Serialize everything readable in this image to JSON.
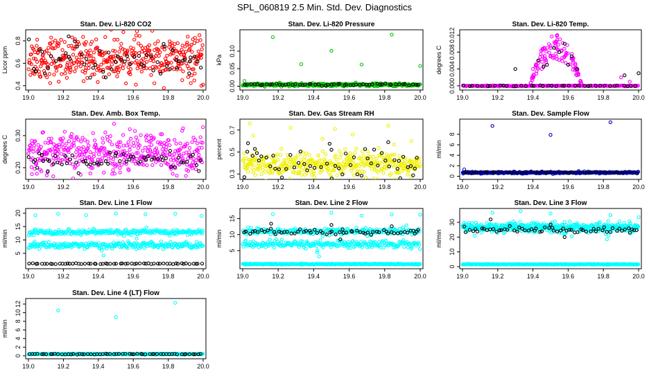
{
  "figure_title": "SPL_060819  2.5 Min. Std. Dev. Diagnostics",
  "chart_data": [
    {
      "type": "scatter",
      "title": "Stan. Dev. Li-820 CO2",
      "ylabel": "Licor ppm",
      "xlim": [
        19.0,
        20.0
      ],
      "ylim": [
        0.38,
        0.88
      ],
      "xticks": [
        "19.0",
        "19.2",
        "19.4",
        "19.6",
        "19.8",
        "20.0"
      ],
      "yticks": [
        {
          "v": 0.4,
          "label": "0.4"
        },
        {
          "v": 0.6,
          "label": "0.6"
        },
        {
          "v": 0.8,
          "label": "0.8"
        }
      ],
      "series": [
        {
          "name": "band",
          "color": "#ff0000",
          "bands": [
            {
              "center": 0.64,
              "spread": 0.09,
              "n": 420
            }
          ],
          "points": [
            [
              19.05,
              0.81
            ],
            [
              19.13,
              0.83
            ],
            [
              19.33,
              0.79
            ],
            [
              19.51,
              0.81
            ],
            [
              19.82,
              0.78
            ],
            [
              19.88,
              0.45
            ],
            [
              19.22,
              0.47
            ],
            [
              19.99,
              0.4
            ],
            [
              19.07,
              0.48
            ],
            [
              19.95,
              0.78
            ]
          ]
        },
        {
          "name": "black",
          "color": "#000000",
          "bands": [
            {
              "center": 0.62,
              "spread": 0.08,
              "n": 55
            }
          ],
          "points": [
            [
              19.23,
              0.84
            ],
            [
              19.78,
              0.75
            ],
            [
              19.92,
              0.51
            ],
            [
              19.85,
              0.56
            ]
          ]
        }
      ]
    },
    {
      "type": "scatter",
      "title": "Stan. Dev. Li-820 Pressure",
      "ylabel": "kPa",
      "xlim": [
        19.0,
        20.0
      ],
      "ylim": [
        -0.005,
        0.155
      ],
      "xticks": [
        "19.0",
        "19.2",
        "19.4",
        "19.6",
        "19.8",
        "20.0"
      ],
      "yticks": [
        {
          "v": 0.0,
          "label": "0.00"
        },
        {
          "v": 0.05,
          "label": "0.05"
        },
        {
          "v": 0.1,
          "label": "0.10"
        }
      ],
      "series": [
        {
          "name": "green",
          "color": "#00c000",
          "bands": [
            {
              "center": 0.004,
              "spread": 0.002,
              "n": 380
            }
          ],
          "points": [
            [
              19.17,
              0.14
            ],
            [
              19.33,
              0.063
            ],
            [
              19.5,
              0.101
            ],
            [
              19.67,
              0.062
            ],
            [
              19.84,
              0.147
            ],
            [
              20.0,
              0.058
            ],
            [
              19.01,
              0.015
            ]
          ]
        },
        {
          "name": "black",
          "color": "#000000",
          "bands": [
            {
              "center": 0.005,
              "spread": 0.0015,
              "n": 55
            }
          ],
          "points": []
        }
      ]
    },
    {
      "type": "scatter",
      "title": "Stan. Dev. Li-820 Temp.",
      "ylabel": "degrees C",
      "xlim": [
        19.0,
        20.0
      ],
      "ylim": [
        -0.0005,
        0.0128
      ],
      "xticks": [
        "19.0",
        "19.2",
        "19.4",
        "19.6",
        "19.8",
        "20.0"
      ],
      "yticks": [
        {
          "v": 0.0,
          "label": "0.000"
        },
        {
          "v": 0.004,
          "label": "0.004"
        },
        {
          "v": 0.008,
          "label": "0.008"
        },
        {
          "v": 0.012,
          "label": "0.012"
        }
      ],
      "series": [
        {
          "name": "magenta",
          "color": "#ff00ff",
          "bands": [
            {
              "center": 0.0,
              "spread": 5e-05,
              "n": 230
            }
          ],
          "hump": {
            "x0": 19.38,
            "x1": 19.68,
            "peak": 0.011,
            "n": 120
          },
          "points": [
            [
              19.9,
              0.002
            ],
            [
              19.95,
              0.001
            ],
            [
              19.4,
              0.004
            ],
            [
              19.45,
              0.004
            ]
          ]
        },
        {
          "name": "black",
          "color": "#000000",
          "bands": [
            {
              "center": 0.0,
              "spread": 5e-05,
              "n": 40
            }
          ],
          "points": [
            [
              19.52,
              0.009
            ],
            [
              19.55,
              0.008
            ],
            [
              19.48,
              0.005
            ],
            [
              19.6,
              0.005
            ],
            [
              19.65,
              0.004
            ],
            [
              19.3,
              0.004
            ],
            [
              19.43,
              0.006
            ],
            [
              19.58,
              0.01
            ],
            [
              19.92,
              0.0025
            ],
            [
              20.0,
              0.003
            ],
            [
              19.62,
              0.007
            ],
            [
              19.46,
              0.0045
            ]
          ]
        }
      ]
    },
    {
      "type": "scatter",
      "title": "Stan. Dev. Amb. Box Temp.",
      "ylabel": "degrees C",
      "xlim": [
        19.0,
        20.0
      ],
      "ylim": [
        0.17,
        0.345
      ],
      "xticks": [
        "19.0",
        "19.2",
        "19.4",
        "19.6",
        "19.8",
        "20.0"
      ],
      "yticks": [
        {
          "v": 0.2,
          "label": "0.20"
        },
        {
          "v": 0.3,
          "label": "0.30"
        }
      ],
      "series": [
        {
          "name": "magenta",
          "color": "#ff00ff",
          "bands": [
            {
              "center": 0.245,
              "spread": 0.03,
              "n": 420
            }
          ],
          "points": [
            [
              19.49,
              0.337
            ],
            [
              19.44,
              0.31
            ],
            [
              19.58,
              0.32
            ],
            [
              19.02,
              0.18
            ],
            [
              19.7,
              0.3
            ]
          ]
        },
        {
          "name": "black",
          "color": "#000000",
          "bands": [
            {
              "center": 0.22,
              "spread": 0.015,
              "n": 60
            }
          ],
          "points": [
            [
              19.11,
              0.187
            ],
            [
              19.05,
              0.2
            ]
          ]
        }
      ]
    },
    {
      "type": "scatter",
      "title": "Stan. Dev. Gas Stream RH",
      "ylabel": "percent",
      "xlim": [
        19.0,
        20.0
      ],
      "ylim": [
        0.27,
        0.78
      ],
      "xticks": [
        "19.0",
        "19.2",
        "19.4",
        "19.6",
        "19.8",
        "20.0"
      ],
      "yticks": [
        {
          "v": 0.3,
          "label": "0.3"
        },
        {
          "v": 0.5,
          "label": "0.5"
        },
        {
          "v": 0.7,
          "label": "0.7"
        }
      ],
      "series": [
        {
          "name": "yellow",
          "color": "#f0f000",
          "bands": [
            {
              "center": 0.38,
              "spread": 0.06,
              "n": 420
            }
          ],
          "points": [
            [
              19.04,
              0.76
            ],
            [
              19.27,
              0.72
            ],
            [
              19.52,
              0.71
            ],
            [
              19.62,
              0.66
            ],
            [
              19.82,
              0.74
            ],
            [
              19.06,
              0.65
            ],
            [
              19.45,
              0.62
            ],
            [
              19.95,
              0.6
            ]
          ]
        },
        {
          "name": "black",
          "color": "#000000",
          "bands": [
            {
              "center": 0.4,
              "spread": 0.07,
              "n": 50
            }
          ],
          "points": [
            [
              19.03,
              0.58
            ],
            [
              19.08,
              0.49
            ],
            [
              19.5,
              0.52
            ],
            [
              19.82,
              0.59
            ],
            [
              19.88,
              0.42
            ],
            [
              19.97,
              0.35
            ]
          ]
        }
      ]
    },
    {
      "type": "scatter",
      "title": "Stan. Dev. Sample Flow",
      "ylabel": "ml/min",
      "xlim": [
        19.0,
        20.0
      ],
      "ylim": [
        -0.2,
        10.5
      ],
      "xticks": [
        "19.0",
        "19.2",
        "19.4",
        "19.6",
        "19.8",
        "20.0"
      ],
      "yticks": [
        {
          "v": 0,
          "label": "0"
        },
        {
          "v": 2,
          "label": "2"
        },
        {
          "v": 4,
          "label": "4"
        },
        {
          "v": 6,
          "label": "6"
        },
        {
          "v": 8,
          "label": "8"
        }
      ],
      "series": [
        {
          "name": "blue",
          "color": "#0000c0",
          "bands": [
            {
              "center": 0.7,
              "spread": 0.08,
              "n": 380
            }
          ],
          "points": [
            [
              19.17,
              9.6
            ],
            [
              19.5,
              7.9
            ],
            [
              19.84,
              10.3
            ],
            [
              19.66,
              1.0
            ],
            [
              19.01,
              1.3
            ]
          ]
        },
        {
          "name": "black",
          "color": "#000000",
          "bands": [
            {
              "center": 0.75,
              "spread": 0.06,
              "n": 50
            }
          ],
          "points": []
        }
      ]
    },
    {
      "type": "scatter",
      "title": "Stan. Dev. Line 1 Flow",
      "ylabel": "ml/min",
      "xlim": [
        19.0,
        20.0
      ],
      "ylim": [
        0,
        21
      ],
      "xticks": [
        "19.0",
        "19.2",
        "19.4",
        "19.6",
        "19.8",
        "20.0"
      ],
      "yticks": [
        {
          "v": 5,
          "label": "5"
        },
        {
          "v": 10,
          "label": "10"
        },
        {
          "v": 15,
          "label": "15"
        },
        {
          "v": 20,
          "label": "20"
        }
      ],
      "series": [
        {
          "name": "cyan",
          "color": "#00ffff",
          "bands": [
            {
              "center": 12.9,
              "spread": 0.5,
              "n": 260
            },
            {
              "center": 8.0,
              "spread": 0.6,
              "n": 260
            }
          ],
          "points": [
            [
              19.17,
              19.8
            ],
            [
              19.33,
              19.3
            ],
            [
              19.5,
              19.9
            ],
            [
              19.67,
              19.6
            ],
            [
              19.84,
              19.8
            ],
            [
              19.99,
              19.0
            ],
            [
              19.42,
              6.0
            ],
            [
              19.43,
              4.2
            ],
            [
              19.62,
              10.5
            ],
            [
              19.04,
              19.2
            ]
          ]
        },
        {
          "name": "black",
          "color": "#000000",
          "bands": [
            {
              "center": 1.1,
              "spread": 0.08,
              "n": 60
            }
          ],
          "points": []
        }
      ]
    },
    {
      "type": "scatter",
      "title": "Stan. Dev. Line 2 Flow",
      "ylabel": "ml/min",
      "xlim": [
        19.0,
        20.0
      ],
      "ylim": [
        0,
        17.5
      ],
      "xticks": [
        "19.0",
        "19.2",
        "19.4",
        "19.6",
        "19.8",
        "20.0"
      ],
      "yticks": [
        {
          "v": 5,
          "label": "5"
        },
        {
          "v": 10,
          "label": "10"
        },
        {
          "v": 15,
          "label": "15"
        }
      ],
      "series": [
        {
          "name": "cyan",
          "color": "#00ffff",
          "bands": [
            {
              "center": 11.0,
              "spread": 0.5,
              "n": 250
            },
            {
              "center": 7.0,
              "spread": 0.6,
              "n": 250
            },
            {
              "center": 0.8,
              "spread": 0.08,
              "n": 300
            }
          ],
          "points": [
            [
              19.17,
              16.4
            ],
            [
              19.5,
              16.8
            ],
            [
              19.84,
              16.3
            ],
            [
              20.0,
              16.2
            ],
            [
              19.42,
              4.5
            ],
            [
              19.43,
              3.2
            ],
            [
              19.67,
              15.9
            ],
            [
              19.03,
              12.3
            ]
          ]
        },
        {
          "name": "black",
          "color": "#000000",
          "bands": [
            {
              "center": 10.8,
              "spread": 0.35,
              "n": 60
            }
          ],
          "points": [
            [
              19.16,
              13.4
            ],
            [
              19.5,
              13.0
            ],
            [
              19.84,
              12.6
            ],
            [
              19.97,
              10.3
            ],
            [
              19.55,
              8.5
            ]
          ]
        }
      ]
    },
    {
      "type": "scatter",
      "title": "Stan. Dev. Line 3 Flow",
      "ylabel": "ml/min",
      "xlim": [
        19.0,
        20.0
      ],
      "ylim": [
        0,
        38
      ],
      "xticks": [
        "19.0",
        "19.2",
        "19.4",
        "19.6",
        "19.8",
        "20.0"
      ],
      "yticks": [
        {
          "v": 0,
          "label": "0"
        },
        {
          "v": 10,
          "label": "10"
        },
        {
          "v": 20,
          "label": "20"
        },
        {
          "v": 30,
          "label": "30"
        }
      ],
      "series": [
        {
          "name": "cyan",
          "color": "#00ffff",
          "bands": [
            {
              "center": 26.5,
              "spread": 1.6,
              "n": 460
            },
            {
              "center": 1.6,
              "spread": 0.12,
              "n": 320
            }
          ],
          "points": [
            [
              19.17,
              36.5
            ],
            [
              19.33,
              37.5
            ],
            [
              19.5,
              36.0
            ],
            [
              19.84,
              35.0
            ],
            [
              20.0,
              33.5
            ],
            [
              19.82,
              18.5
            ],
            [
              19.83,
              21.0
            ],
            [
              19.62,
              20.5
            ],
            [
              19.07,
              21.0
            ]
          ]
        },
        {
          "name": "black",
          "color": "#000000",
          "bands": [
            {
              "center": 25.0,
              "spread": 0.9,
              "n": 60
            }
          ],
          "points": [
            [
              19.16,
              32.0
            ],
            [
              19.5,
              28.5
            ],
            [
              19.58,
              20.0
            ],
            [
              19.95,
              23.0
            ]
          ]
        }
      ]
    },
    {
      "type": "scatter",
      "title": "Stan. Dev. Line 4 (LT) Flow",
      "ylabel": "ml/min",
      "xlim": [
        19.0,
        20.0
      ],
      "ylim": [
        -0.2,
        12.8
      ],
      "xticks": [
        "19.0",
        "19.2",
        "19.4",
        "19.6",
        "19.8",
        "20.0"
      ],
      "yticks": [
        {
          "v": 0,
          "label": "0"
        },
        {
          "v": 2,
          "label": "2"
        },
        {
          "v": 4,
          "label": "4"
        },
        {
          "v": 6,
          "label": "6"
        },
        {
          "v": 8,
          "label": "8"
        },
        {
          "v": 10,
          "label": "10"
        },
        {
          "v": 12,
          "label": "12"
        }
      ],
      "series": [
        {
          "name": "cyan",
          "color": "#00ffff",
          "bands": [
            {
              "center": 0.4,
              "spread": 0.05,
              "n": 380
            }
          ],
          "points": [
            [
              19.17,
              10.5
            ],
            [
              19.5,
              9.0
            ],
            [
              19.84,
              12.3
            ]
          ]
        },
        {
          "name": "black",
          "color": "#000000",
          "bands": [
            {
              "center": 0.4,
              "spread": 0.04,
              "n": 60
            }
          ],
          "points": []
        }
      ]
    }
  ]
}
